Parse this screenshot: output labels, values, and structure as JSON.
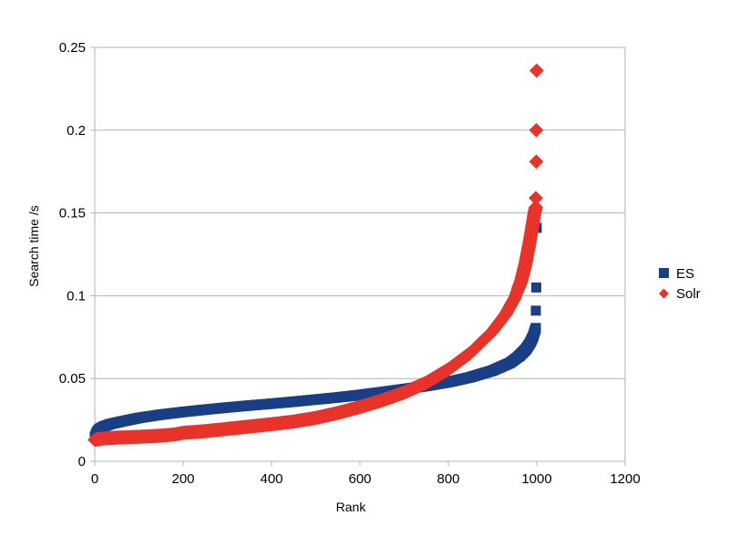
{
  "chart_data": {
    "type": "scatter",
    "title": "",
    "xlabel": "Rank",
    "ylabel": "Search time /s",
    "xlim": [
      0,
      1200
    ],
    "ylim": [
      0,
      0.25
    ],
    "x_ticks": [
      0,
      200,
      400,
      600,
      800,
      1000,
      1200
    ],
    "y_ticks": [
      0,
      0.05,
      0.1,
      0.15,
      0.2,
      0.25
    ],
    "x_tick_labels": [
      "0",
      "200",
      "400",
      "600",
      "800",
      "1000",
      "1200"
    ],
    "y_tick_labels": [
      "0",
      "0.05",
      "0.1",
      "0.15",
      "0.2",
      "0.25"
    ],
    "grid": "horizontal",
    "legend_position": "right",
    "series": [
      {
        "name": "ES",
        "marker": "square",
        "color": "#1b3f86",
        "curve": [
          [
            0,
            0.015
          ],
          [
            2,
            0.0165
          ],
          [
            5,
            0.018
          ],
          [
            10,
            0.0195
          ],
          [
            20,
            0.021
          ],
          [
            35,
            0.0225
          ],
          [
            60,
            0.024
          ],
          [
            100,
            0.0262
          ],
          [
            150,
            0.0282
          ],
          [
            200,
            0.0298
          ],
          [
            250,
            0.0312
          ],
          [
            300,
            0.0325
          ],
          [
            350,
            0.0337
          ],
          [
            400,
            0.0348
          ],
          [
            450,
            0.036
          ],
          [
            500,
            0.0373
          ],
          [
            550,
            0.0386
          ],
          [
            600,
            0.0401
          ],
          [
            650,
            0.0418
          ],
          [
            700,
            0.0436
          ],
          [
            750,
            0.0455
          ],
          [
            800,
            0.0478
          ],
          [
            850,
            0.0508
          ],
          [
            900,
            0.0548
          ],
          [
            940,
            0.0595
          ],
          [
            960,
            0.0635
          ],
          [
            975,
            0.0675
          ],
          [
            985,
            0.0715
          ],
          [
            992,
            0.0755
          ],
          [
            996,
            0.079
          ],
          [
            998,
            0.0805
          ]
        ],
        "outliers": [
          [
            998,
            0.091
          ],
          [
            999,
            0.105
          ],
          [
            1000,
            0.141
          ]
        ]
      },
      {
        "name": "Solr",
        "marker": "diamond",
        "color": "#e8332a",
        "curve": [
          [
            0,
            0.013
          ],
          [
            5,
            0.0132
          ],
          [
            20,
            0.0138
          ],
          [
            50,
            0.0143
          ],
          [
            100,
            0.0148
          ],
          [
            150,
            0.0155
          ],
          [
            180,
            0.0162
          ],
          [
            200,
            0.0172
          ],
          [
            250,
            0.0182
          ],
          [
            300,
            0.0196
          ],
          [
            350,
            0.021
          ],
          [
            400,
            0.0224
          ],
          [
            450,
            0.024
          ],
          [
            500,
            0.0262
          ],
          [
            550,
            0.0292
          ],
          [
            600,
            0.0328
          ],
          [
            650,
            0.0368
          ],
          [
            700,
            0.0415
          ],
          [
            750,
            0.0475
          ],
          [
            800,
            0.0555
          ],
          [
            850,
            0.0655
          ],
          [
            900,
            0.0785
          ],
          [
            930,
            0.089
          ],
          [
            950,
            0.0985
          ],
          [
            965,
            0.109
          ],
          [
            975,
            0.12
          ],
          [
            983,
            0.131
          ],
          [
            990,
            0.142
          ],
          [
            995,
            0.15
          ],
          [
            998,
            0.1535
          ]
        ],
        "outliers": [
          [
            998,
            0.159
          ],
          [
            999,
            0.181
          ],
          [
            999,
            0.2
          ],
          [
            1000,
            0.236
          ]
        ]
      }
    ]
  }
}
